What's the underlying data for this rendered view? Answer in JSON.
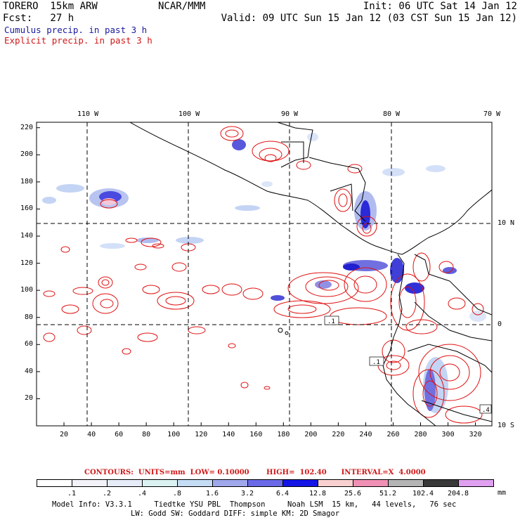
{
  "header": {
    "model": "TORERO  15km ARW",
    "center": "NCAR/MMM",
    "init": "Init: 06 UTC Sat 14 Jan 12",
    "fcst": "Fcst:   27 h",
    "valid": "Valid: 09 UTC Sun 15 Jan 12 (03 CST Sun 15 Jan 12)",
    "cumulus": "Cumulus precip. in past 3 h",
    "explicit": "Explicit precip. in past 3 h"
  },
  "map": {
    "lon_labels": [
      "110 W",
      "100 W",
      "90 W",
      "80 W",
      "70 W"
    ],
    "lat_labels": [
      "10 N",
      "0",
      "10 S"
    ],
    "x_ticks": [
      "20",
      "40",
      "60",
      "80",
      "100",
      "120",
      "140",
      "160",
      "180",
      "200",
      "220",
      "240",
      "260",
      "280",
      "300",
      "320"
    ],
    "y_ticks": [
      "220",
      "200",
      "180",
      "160",
      "140",
      "120",
      "100",
      "80",
      "60",
      "40",
      "20"
    ],
    "x_range": [
      0,
      332
    ],
    "y_range": [
      0,
      224
    ],
    "colors": {
      "coast": "#000000",
      "grid": "#000000",
      "cumulus": "#3a3ae0",
      "explicit": "#e01010"
    },
    "contour_labels": [
      ".1",
      ".1",
      ".4"
    ]
  },
  "legend": {
    "contours_text": "CONTOURS:  UNITS=mm  LOW= 0.10000       HIGH=  102.40      INTERVAL=X  4.0000",
    "boundaries": [
      ".1",
      ".2",
      ".4",
      ".8",
      "1.6",
      "3.2",
      "6.4",
      "12.8",
      "25.6",
      "51.2",
      "102.4",
      "204.8"
    ],
    "unit": "mm",
    "colors": [
      "#ffffff",
      "#f2f2f8",
      "#e6ecf8",
      "#dcf2f2",
      "#c4dcf4",
      "#a0a8ec",
      "#6a6ae8",
      "#1414e6",
      "#f8d0d0",
      "#f090b4",
      "#b4b4b4",
      "#383838",
      "#e0a0f0"
    ]
  },
  "footer": {
    "line1": "Model Info: V3.3.1     Tiedtke YSU PBL  Thompson     Noah LSM  15 km,   44 levels,   76 sec",
    "line2": "LW: Godd SW: Goddard DIFF: simple KM: 2D Smagor"
  }
}
